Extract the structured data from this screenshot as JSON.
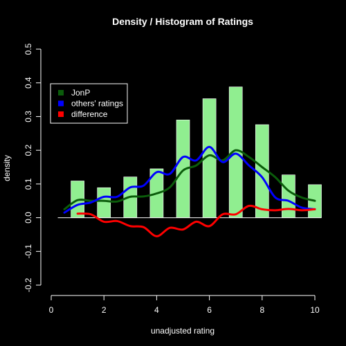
{
  "chart_data": {
    "type": "bar",
    "title": "Density / Histogram of Ratings",
    "xlabel": "unadjusted rating",
    "ylabel": "density",
    "xlim": [
      0,
      10
    ],
    "ylim": [
      -0.2,
      0.5
    ],
    "x_ticks": [
      "0",
      "2",
      "4",
      "6",
      "8",
      "10"
    ],
    "y_ticks": [
      "-0.2",
      "-0.1",
      "0.0",
      "0.1",
      "0.2",
      "0.3",
      "0.4",
      "0.5"
    ],
    "grid": false,
    "legend_position": "top-left",
    "bar_color": "#90EE90",
    "histogram": {
      "x": [
        1,
        2,
        3,
        4,
        5,
        6,
        7,
        8,
        9,
        10
      ],
      "values": [
        0.109,
        0.089,
        0.121,
        0.145,
        0.29,
        0.353,
        0.388,
        0.276,
        0.127,
        0.098
      ]
    },
    "series": [
      {
        "name": "JonP",
        "color": "#0B5C0B",
        "x": [
          0.5,
          1,
          1.5,
          2,
          2.5,
          3,
          3.5,
          4,
          4.5,
          5,
          5.5,
          6,
          6.5,
          7,
          7.5,
          8,
          8.5,
          9,
          9.5,
          10
        ],
        "values": [
          0.025,
          0.052,
          0.05,
          0.05,
          0.048,
          0.062,
          0.063,
          0.072,
          0.09,
          0.14,
          0.155,
          0.185,
          0.17,
          0.2,
          0.18,
          0.15,
          0.12,
          0.08,
          0.06,
          0.05
        ]
      },
      {
        "name": "others' ratings",
        "color": "#0000FF",
        "x": [
          0.5,
          1,
          1.5,
          2,
          2.5,
          3,
          3.5,
          4,
          4.5,
          5,
          5.5,
          6,
          6.5,
          7,
          7.5,
          8,
          8.5,
          9,
          9.5,
          10
        ],
        "values": [
          0.015,
          0.038,
          0.045,
          0.062,
          0.062,
          0.09,
          0.095,
          0.135,
          0.13,
          0.18,
          0.17,
          0.21,
          0.165,
          0.19,
          0.155,
          0.12,
          0.06,
          0.05,
          0.03,
          0.025
        ]
      },
      {
        "name": "difference",
        "color": "#FF0000",
        "x": [
          1,
          1.5,
          2,
          2.5,
          3,
          3.5,
          4,
          4.5,
          5,
          5.5,
          6,
          6.5,
          7,
          7.5,
          8,
          8.5,
          9,
          9.5,
          10
        ],
        "values": [
          0.012,
          0.01,
          -0.012,
          -0.01,
          -0.025,
          -0.028,
          -0.055,
          -0.03,
          -0.035,
          -0.012,
          -0.025,
          0.01,
          0.01,
          0.035,
          0.025,
          0.022,
          0.026,
          0.022,
          0.025
        ]
      }
    ]
  }
}
